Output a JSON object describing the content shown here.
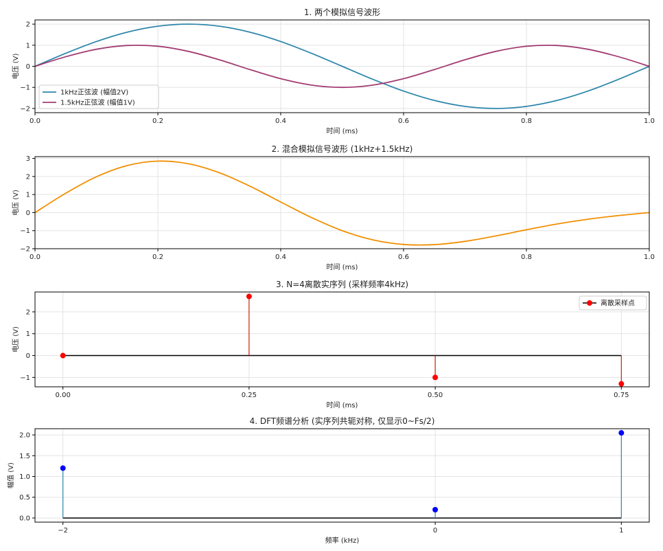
{
  "chart_data": [
    {
      "type": "line",
      "title": "1. 两个模拟信号波形",
      "xlabel": "时间 (ms)",
      "ylabel": "电压 (V)",
      "xlim": [
        0,
        1
      ],
      "ylim": [
        -2.2,
        2.2
      ],
      "xticks": [
        "0.0",
        "0.2",
        "0.4",
        "0.6",
        "0.8",
        "1.0"
      ],
      "yticks": [
        "−2",
        "−1",
        "0",
        "1",
        "2"
      ],
      "grid": true,
      "legend_position": "lower-left",
      "series": [
        {
          "name": "1kHz正弦波 (幅值2V)",
          "color": "#2e86ab",
          "x": [
            0,
            0.05,
            0.1,
            0.15,
            0.2,
            0.25,
            0.3,
            0.35,
            0.4,
            0.45,
            0.5,
            0.55,
            0.6,
            0.65,
            0.7,
            0.75,
            0.8,
            0.85,
            0.9,
            0.95,
            1.0
          ],
          "y": [
            0,
            0.618,
            1.176,
            1.618,
            1.902,
            2.0,
            1.902,
            1.618,
            1.176,
            0.618,
            0,
            -0.618,
            -1.176,
            -1.618,
            -1.902,
            -2.0,
            -1.902,
            -1.618,
            -1.176,
            -0.618,
            0
          ]
        },
        {
          "name": "1.5kHz正弦波 (幅值1V)",
          "color": "#a23b72",
          "x": [
            0,
            0.05,
            0.1,
            0.15,
            0.2,
            0.25,
            0.3,
            0.35,
            0.4,
            0.45,
            0.5,
            0.55,
            0.6,
            0.65,
            0.7,
            0.75,
            0.8,
            0.85,
            0.9,
            0.95,
            1.0
          ],
          "y": [
            0,
            0.454,
            0.809,
            0.988,
            0.951,
            0.707,
            0.309,
            -0.156,
            -0.588,
            -0.891,
            -1.0,
            -0.891,
            -0.588,
            -0.156,
            0.309,
            0.707,
            0.951,
            0.988,
            0.809,
            0.454,
            0
          ]
        }
      ]
    },
    {
      "type": "line",
      "title": "2. 混合模拟信号波形 (1kHz+1.5kHz)",
      "xlabel": "时间 (ms)",
      "ylabel": "电压 (V)",
      "xlim": [
        0,
        1
      ],
      "ylim": [
        -2,
        3.1
      ],
      "xticks": [
        "0.0",
        "0.2",
        "0.4",
        "0.6",
        "0.8",
        "1.0"
      ],
      "yticks": [
        "−2",
        "−1",
        "0",
        "1",
        "2",
        "3"
      ],
      "grid": true,
      "series": [
        {
          "name": "",
          "color": "#f18f01",
          "x": [
            0,
            0.05,
            0.1,
            0.15,
            0.2,
            0.25,
            0.3,
            0.35,
            0.4,
            0.45,
            0.5,
            0.55,
            0.6,
            0.65,
            0.7,
            0.75,
            0.8,
            0.85,
            0.9,
            0.95,
            1.0
          ],
          "y": [
            0,
            1.072,
            1.985,
            2.606,
            2.853,
            2.707,
            2.211,
            1.462,
            0.588,
            -0.273,
            -1.0,
            -1.509,
            -1.764,
            -1.774,
            -1.593,
            -1.293,
            -0.951,
            -0.63,
            -0.367,
            -0.164,
            0
          ]
        }
      ]
    },
    {
      "type": "stem",
      "title": "3. N=4离散实序列 (采样频率4kHz)",
      "xlabel": "时间 (ms)",
      "ylabel": "电压 (V)",
      "xlim": [
        -0.0375,
        0.7875
      ],
      "ylim": [
        -1.43,
        2.91
      ],
      "xticks": [
        "0.00",
        "0.25",
        "0.50",
        "0.75"
      ],
      "yticks": [
        "−1",
        "0",
        "1",
        "2"
      ],
      "grid": true,
      "legend_position": "upper-right",
      "series": [
        {
          "name": "离散采样点",
          "marker_color": "#ff0000",
          "stem_color": "#cc2200",
          "baseline_color": "#000000",
          "x": [
            0,
            0.25,
            0.5,
            0.75
          ],
          "y": [
            0,
            2.707,
            -1.0,
            -1.293
          ]
        }
      ]
    },
    {
      "type": "stem",
      "title": "4. DFT频谱分析 (实序列共轭对称, 仅显示0~Fs/2)",
      "xlabel": "频率 (kHz)",
      "ylabel": "幅值 (V)",
      "xlim": [
        -2.15,
        1.15
      ],
      "ylim": [
        -0.1,
        2.15
      ],
      "xticks": [
        "−2",
        "0",
        "1"
      ],
      "yticks": [
        "0.0",
        "0.5",
        "1.0",
        "1.5",
        "2.0"
      ],
      "grid": true,
      "series": [
        {
          "name": "",
          "marker_color": "#0000ff",
          "stem_color": "#2e86ab",
          "baseline_color": "#000000",
          "x": [
            -2,
            0,
            1
          ],
          "y": [
            1.2,
            0.2,
            2.05
          ]
        }
      ]
    }
  ]
}
